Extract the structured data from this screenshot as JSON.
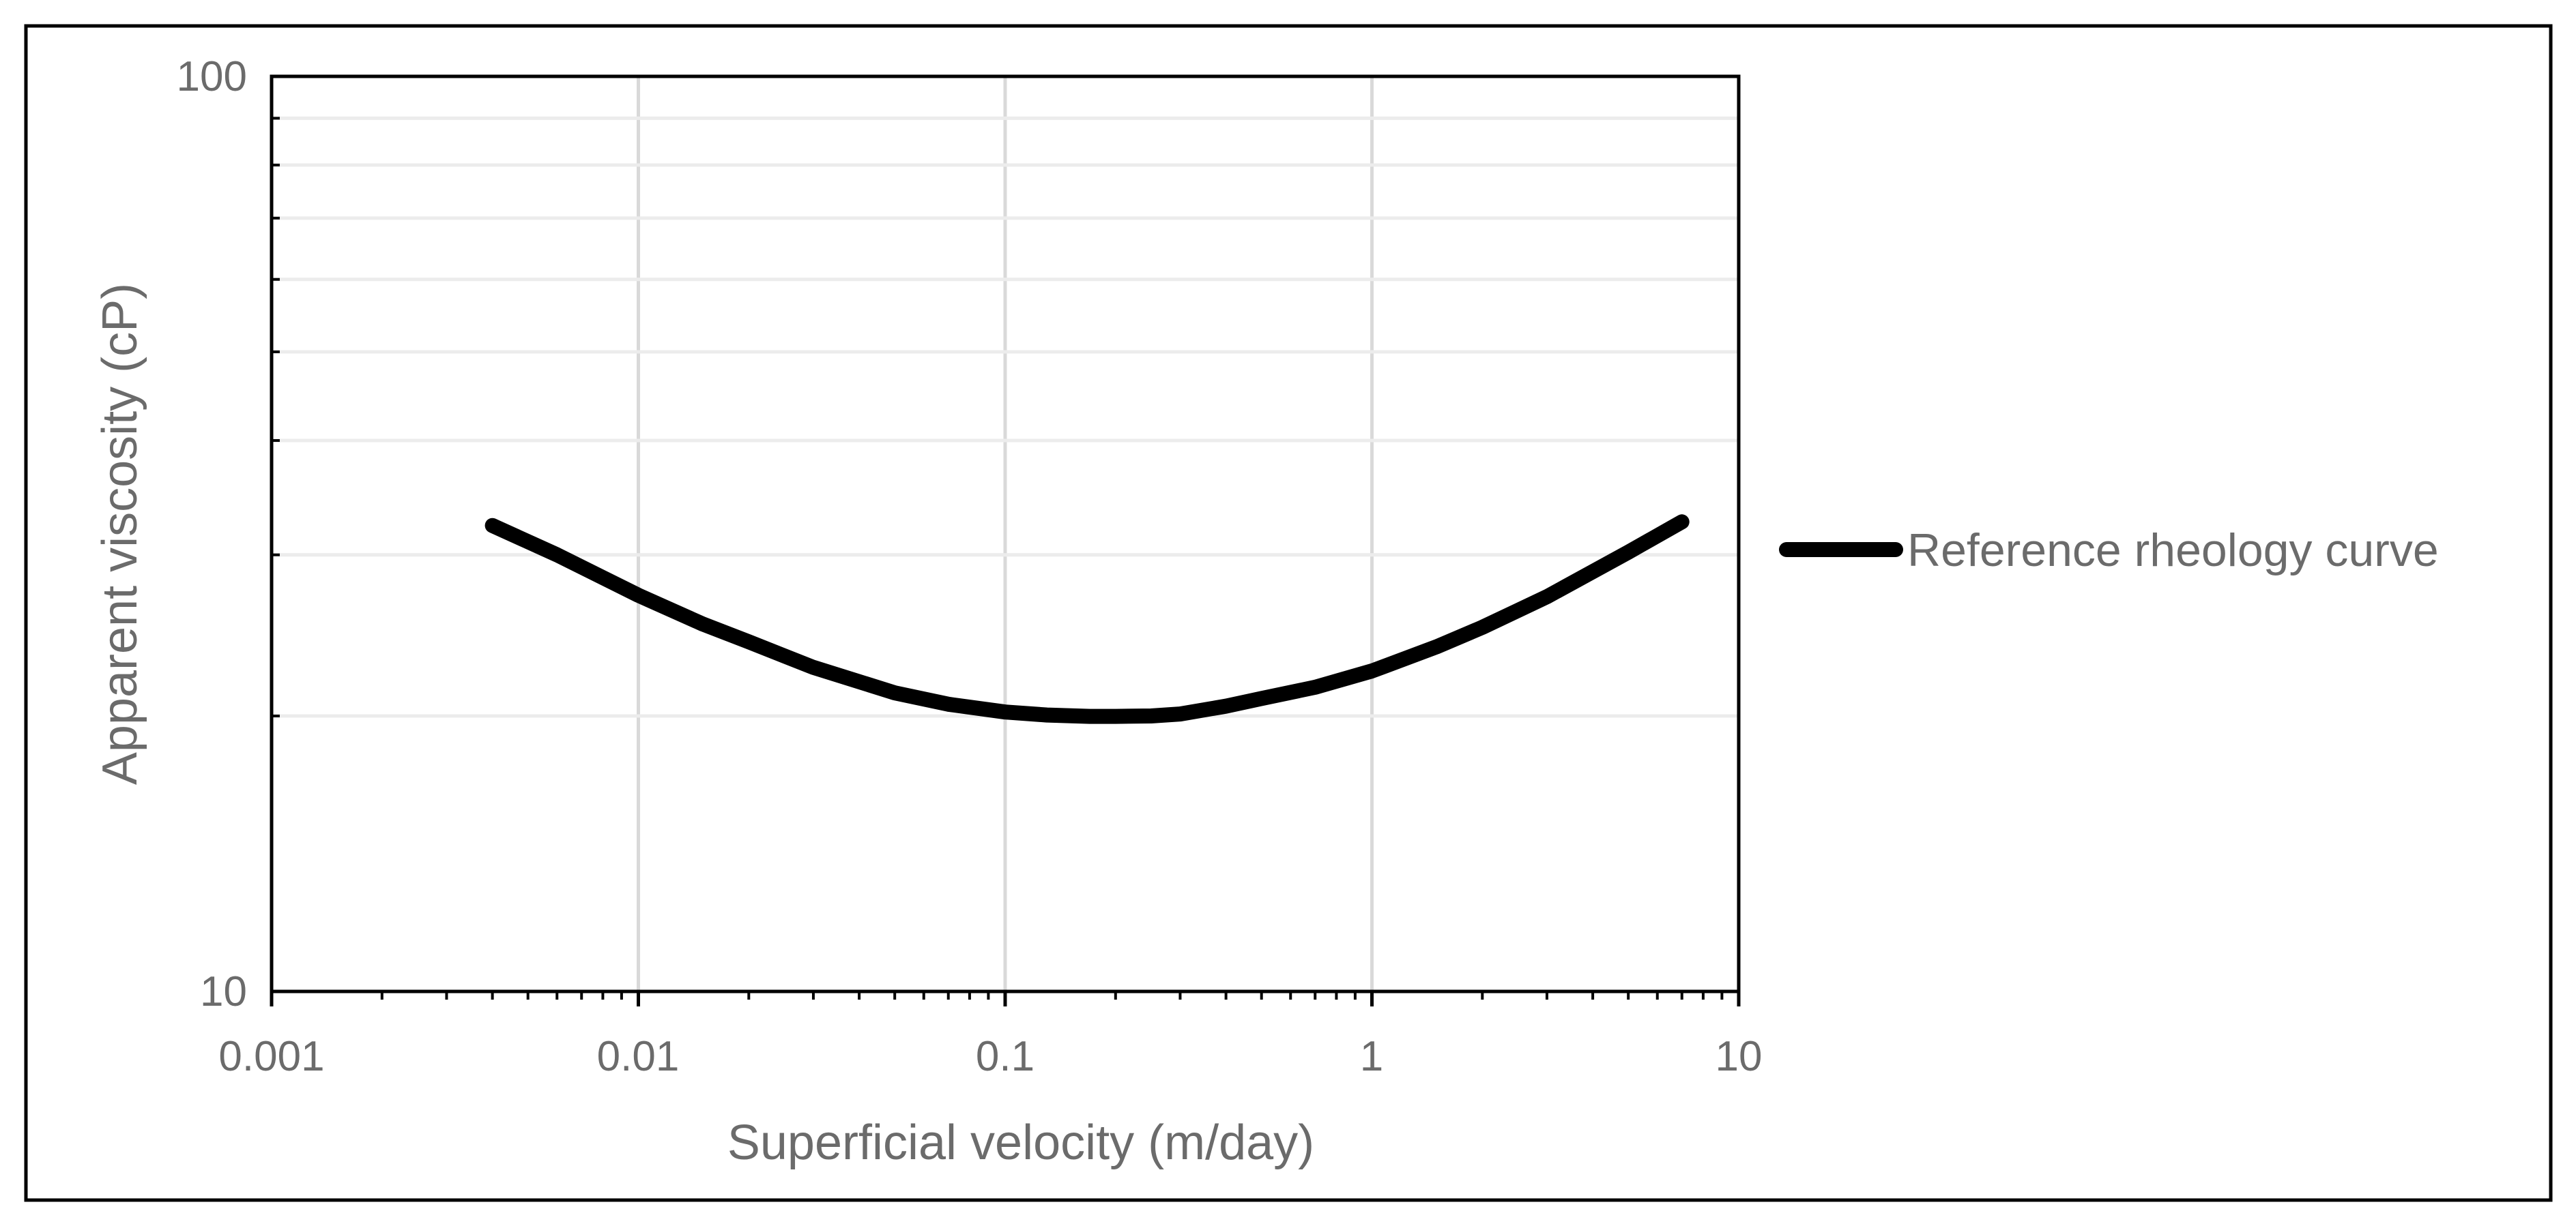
{
  "chart_data": {
    "type": "line",
    "xlabel": "Superficial velocity (m/day)",
    "ylabel": "Apparent viscosity (cP)",
    "x_scale": "log",
    "y_scale": "log",
    "xlim": [
      0.001,
      10
    ],
    "ylim": [
      10,
      100
    ],
    "x_tick_labels": [
      "0.001",
      "0.01",
      "0.1",
      "1",
      "10"
    ],
    "x_tick_values": [
      0.001,
      0.01,
      0.1,
      1,
      10
    ],
    "y_tick_labels": [
      "10",
      "100"
    ],
    "y_tick_values": [
      10,
      100
    ],
    "grid": true,
    "legend_position": "right",
    "series": [
      {
        "name": "Reference rheology curve",
        "color": "#000000",
        "x": [
          0.004,
          0.006,
          0.01,
          0.015,
          0.02,
          0.03,
          0.05,
          0.07,
          0.1,
          0.13,
          0.17,
          0.2,
          0.25,
          0.3,
          0.4,
          0.5,
          0.7,
          1.0,
          1.5,
          2.0,
          3.0,
          5.0,
          7.0
        ],
        "y": [
          32.3,
          30.0,
          27.1,
          25.2,
          24.1,
          22.6,
          21.2,
          20.6,
          20.2,
          20.05,
          19.98,
          19.98,
          20.0,
          20.1,
          20.5,
          20.9,
          21.5,
          22.4,
          23.8,
          25.0,
          27.0,
          30.2,
          32.6
        ]
      }
    ]
  }
}
